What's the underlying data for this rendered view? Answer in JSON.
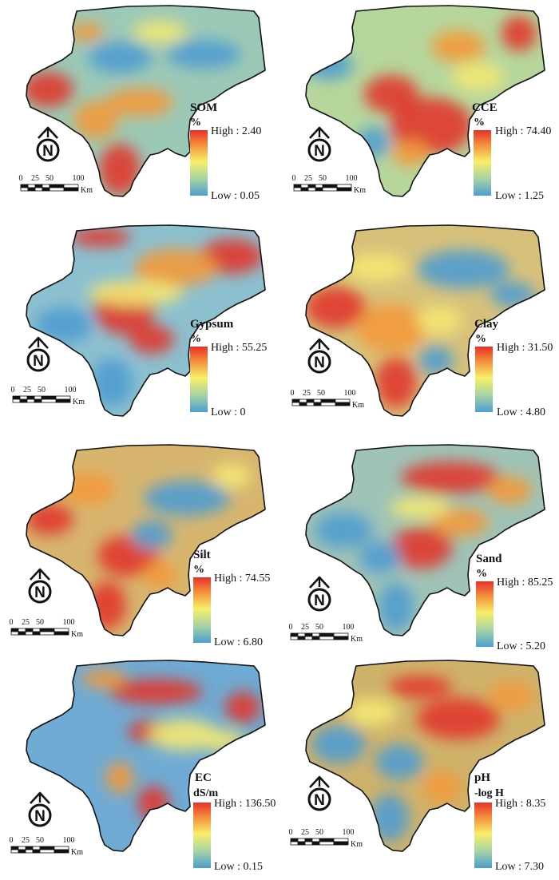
{
  "panels": [
    {
      "variable": "SOM",
      "unit": "%",
      "high": "High : 2.40",
      "low": "Low : 0.05"
    },
    {
      "variable": "CCE",
      "unit": "%",
      "high": "High : 74.40",
      "low": "Low : 1.25"
    },
    {
      "variable": "Gypsum",
      "unit": "%",
      "high": "High : 55.25",
      "low": "Low : 0"
    },
    {
      "variable": "Clay",
      "unit": "%",
      "high": "High : 31.50",
      "low": "Low : 4.80"
    },
    {
      "variable": "Silt",
      "unit": "%",
      "high": "High : 74.55",
      "low": "Low : 6.80"
    },
    {
      "variable": "Sand",
      "unit": "%",
      "high": "High : 85.25",
      "low": "Low : 5.20"
    },
    {
      "variable": "EC",
      "unit": "dS/m",
      "high": "High : 136.50",
      "low": "Low : 0.15"
    },
    {
      "variable": "pH",
      "unit": "-log H",
      "high": "High : 8.35",
      "low": "Low : 7.30"
    }
  ],
  "scale_bar": {
    "ticks": [
      "0",
      "25",
      "50",
      "100"
    ],
    "unit": "Km"
  },
  "north_arrow": {
    "letter": "N",
    "icon": "north-arrow-icon"
  },
  "legend_colors": {
    "high": "#e8302a",
    "mid": "#f7ef6a",
    "low": "#4a9fd1"
  }
}
